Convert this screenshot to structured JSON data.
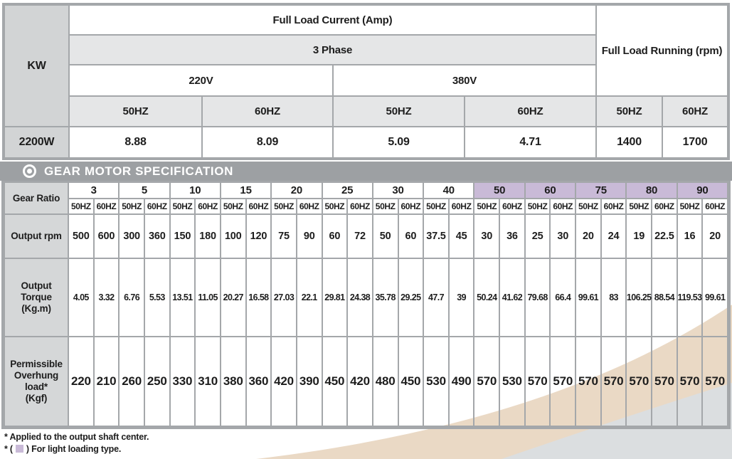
{
  "top_table": {
    "kw_label": "KW",
    "full_load_current": "Full Load Current (Amp)",
    "phase": "3 Phase",
    "v220": "220V",
    "v380": "380V",
    "hz50": "50HZ",
    "hz60": "60HZ",
    "full_load_running": "Full Load Running (rpm)",
    "row": {
      "kw": "2200W",
      "a220_50": "8.88",
      "a220_60": "8.09",
      "a380_50": "5.09",
      "a380_60": "4.71",
      "rpm_50": "1400",
      "rpm_60": "1700"
    }
  },
  "section_title": "GEAR MOTOR SPECIFICATION",
  "gear_table": {
    "row_labels": {
      "ratio": "Gear Ratio",
      "rpm": "Output rpm",
      "torque": "Output Torque\n(Kg.m)",
      "overhung": "Permissible\nOverhung load*\n(Kgf)"
    },
    "hz_labels": [
      "50HZ",
      "60HZ"
    ],
    "columns": [
      {
        "ratio": "3",
        "light": false,
        "rpm": [
          "500",
          "600"
        ],
        "torque": [
          "4.05",
          "3.32"
        ],
        "overhung": [
          "220",
          "210"
        ]
      },
      {
        "ratio": "5",
        "light": false,
        "rpm": [
          "300",
          "360"
        ],
        "torque": [
          "6.76",
          "5.53"
        ],
        "overhung": [
          "260",
          "250"
        ]
      },
      {
        "ratio": "10",
        "light": false,
        "rpm": [
          "150",
          "180"
        ],
        "torque": [
          "13.51",
          "11.05"
        ],
        "overhung": [
          "330",
          "310"
        ]
      },
      {
        "ratio": "15",
        "light": false,
        "rpm": [
          "100",
          "120"
        ],
        "torque": [
          "20.27",
          "16.58"
        ],
        "overhung": [
          "380",
          "360"
        ]
      },
      {
        "ratio": "20",
        "light": false,
        "rpm": [
          "75",
          "90"
        ],
        "torque": [
          "27.03",
          "22.1"
        ],
        "overhung": [
          "420",
          "390"
        ]
      },
      {
        "ratio": "25",
        "light": false,
        "rpm": [
          "60",
          "72"
        ],
        "torque": [
          "29.81",
          "24.38"
        ],
        "overhung": [
          "450",
          "420"
        ]
      },
      {
        "ratio": "30",
        "light": false,
        "rpm": [
          "50",
          "60"
        ],
        "torque": [
          "35.78",
          "29.25"
        ],
        "overhung": [
          "480",
          "450"
        ]
      },
      {
        "ratio": "40",
        "light": false,
        "rpm": [
          "37.5",
          "45"
        ],
        "torque": [
          "47.7",
          "39"
        ],
        "overhung": [
          "530",
          "490"
        ]
      },
      {
        "ratio": "50",
        "light": true,
        "rpm": [
          "30",
          "36"
        ],
        "torque": [
          "50.24",
          "41.62"
        ],
        "overhung": [
          "570",
          "530"
        ]
      },
      {
        "ratio": "60",
        "light": true,
        "rpm": [
          "25",
          "30"
        ],
        "torque": [
          "79.68",
          "66.4"
        ],
        "overhung": [
          "570",
          "570"
        ]
      },
      {
        "ratio": "75",
        "light": true,
        "rpm": [
          "20",
          "24"
        ],
        "torque": [
          "99.61",
          "83"
        ],
        "overhung": [
          "570",
          "570"
        ]
      },
      {
        "ratio": "80",
        "light": true,
        "rpm": [
          "19",
          "22.5"
        ],
        "torque": [
          "106.25",
          "88.54"
        ],
        "overhung": [
          "570",
          "570"
        ]
      },
      {
        "ratio": "90",
        "light": true,
        "rpm": [
          "16",
          "20"
        ],
        "torque": [
          "119.53",
          "99.61"
        ],
        "overhung": [
          "570",
          "570"
        ]
      }
    ]
  },
  "footnotes": {
    "line1": "* Applied to the output shaft center.",
    "line2_prefix": "* (",
    "line2_suffix": ") For light loading type."
  },
  "colors": {
    "light_loading_purple": "#c9bad7",
    "grid_gray": "#a4a7aa",
    "label_cell_gray": "#d2d4d5",
    "header_light_gray": "#e5e6e7",
    "title_bar_gray": "#9da0a3",
    "swoosh_beige": "#ead9c5",
    "swoosh_gray": "#dbdee0"
  }
}
